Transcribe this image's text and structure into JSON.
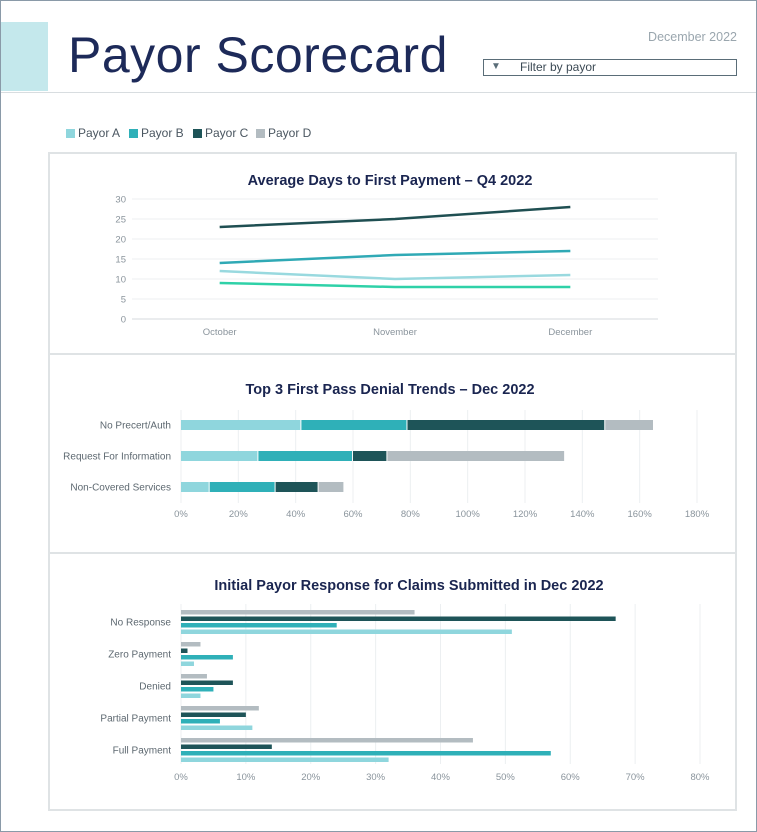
{
  "header": {
    "title": "Payor Scorecard",
    "date": "December 2022",
    "filter_label": "Filter by payor",
    "filter_icon": "triangle-down-icon"
  },
  "legend": [
    {
      "name": "Payor A",
      "color": "#8fd6dd"
    },
    {
      "name": "Payor B",
      "color": "#2fb0b8"
    },
    {
      "name": "Payor C",
      "color": "#1e5458"
    },
    {
      "name": "Payor D",
      "color": "#b3bcc1"
    }
  ],
  "chart_data": [
    {
      "type": "line",
      "title": "Average Days to First Payment – Q4 2022",
      "categories": [
        "October",
        "November",
        "December"
      ],
      "ylim": [
        0,
        30
      ],
      "yticks": [
        0,
        5,
        10,
        15,
        20,
        25,
        30
      ],
      "grid": true,
      "series": [
        {
          "name": "Payor A",
          "color": "#99d9df",
          "values": [
            12,
            10,
            11
          ]
        },
        {
          "name": "Payor B",
          "color": "#2fa9b5",
          "values": [
            14,
            16,
            17
          ]
        },
        {
          "name": "Payor C",
          "color": "#1f4f52",
          "values": [
            23,
            25,
            28
          ]
        },
        {
          "name": "Payor D",
          "color": "#2fd1a8",
          "values": [
            9,
            8,
            8
          ]
        }
      ]
    },
    {
      "type": "bar",
      "orientation": "horizontal",
      "stacked": true,
      "title": "Top 3 First Pass Denial Trends – Dec 2022",
      "categories": [
        "No Precert/Auth",
        "Request For Information",
        "Non-Covered Services"
      ],
      "xlim": [
        0,
        180
      ],
      "xticks": [
        "0%",
        "20%",
        "40%",
        "60%",
        "80%",
        "100%",
        "120%",
        "140%",
        "160%",
        "180%"
      ],
      "grid": true,
      "series": [
        {
          "name": "Payor A",
          "color": "#8fd6dd",
          "values": [
            42,
            27,
            10
          ]
        },
        {
          "name": "Payor B",
          "color": "#2fb0b8",
          "values": [
            37,
            33,
            23
          ]
        },
        {
          "name": "Payor C",
          "color": "#1e5458",
          "values": [
            69,
            12,
            15
          ]
        },
        {
          "name": "Payor D",
          "color": "#b3bcc1",
          "values": [
            17,
            62,
            9
          ]
        }
      ]
    },
    {
      "type": "bar",
      "orientation": "horizontal",
      "stacked": false,
      "title": "Initial Payor Response for Claims Submitted in Dec 2022",
      "categories": [
        "No Response",
        "Zero Payment",
        "Denied",
        "Partial Payment",
        "Full Payment"
      ],
      "xlim": [
        0,
        80
      ],
      "xticks": [
        "0%",
        "10%",
        "20%",
        "30%",
        "40%",
        "50%",
        "60%",
        "70%",
        "80%"
      ],
      "grid": true,
      "series": [
        {
          "name": "Payor D",
          "color": "#b3bcc1",
          "values": [
            36,
            3,
            4,
            12,
            45
          ]
        },
        {
          "name": "Payor C",
          "color": "#1e5458",
          "values": [
            67,
            1,
            8,
            10,
            14
          ]
        },
        {
          "name": "Payor B",
          "color": "#2fb0b8",
          "values": [
            24,
            8,
            5,
            6,
            57
          ]
        },
        {
          "name": "Payor A",
          "color": "#8fd6dd",
          "values": [
            51,
            2,
            3,
            11,
            32
          ]
        }
      ]
    }
  ]
}
